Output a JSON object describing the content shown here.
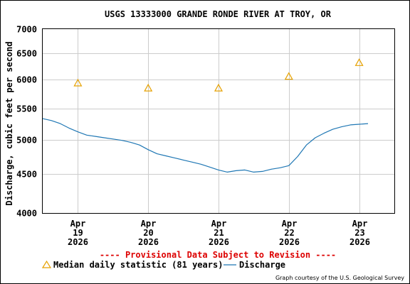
{
  "chart_data": {
    "type": "line",
    "title": "USGS 13333000 GRANDE RONDE RIVER AT TROY, OR",
    "ylabel": "Discharge, cubic feet per second",
    "xlabel": "",
    "y_scale": "log",
    "ylim": [
      4000,
      7000
    ],
    "y_ticks": [
      {
        "value": 4000,
        "label": "4000"
      },
      {
        "value": 4500,
        "label": "4500"
      },
      {
        "value": 5000,
        "label": "5000"
      },
      {
        "value": 5500,
        "label": "5500"
      },
      {
        "value": 6000,
        "label": "6000"
      },
      {
        "value": 6500,
        "label": "6500"
      },
      {
        "value": 7000,
        "label": "7000"
      }
    ],
    "xlim": [
      "2026-04-18 12:00",
      "2026-04-23 12:00"
    ],
    "x_ticks": [
      {
        "value": "2026-04-19",
        "lines": [
          "Apr",
          "19",
          "2026"
        ]
      },
      {
        "value": "2026-04-20",
        "lines": [
          "Apr",
          "20",
          "2026"
        ]
      },
      {
        "value": "2026-04-21",
        "lines": [
          "Apr",
          "21",
          "2026"
        ]
      },
      {
        "value": "2026-04-22",
        "lines": [
          "Apr",
          "22",
          "2026"
        ]
      },
      {
        "value": "2026-04-23",
        "lines": [
          "Apr",
          "23",
          "2026"
        ]
      }
    ],
    "grid": true,
    "series": [
      {
        "name": "Discharge",
        "type": "line",
        "color": "#1f77b4",
        "points": [
          [
            "2026-04-18 12:00",
            5330
          ],
          [
            "2026-04-18 15:00",
            5300
          ],
          [
            "2026-04-18 18:00",
            5250
          ],
          [
            "2026-04-18 21:00",
            5180
          ],
          [
            "2026-04-19 00:00",
            5120
          ],
          [
            "2026-04-19 03:00",
            5070
          ],
          [
            "2026-04-19 06:00",
            5050
          ],
          [
            "2026-04-19 09:00",
            5030
          ],
          [
            "2026-04-19 12:00",
            5010
          ],
          [
            "2026-04-19 15:00",
            4990
          ],
          [
            "2026-04-19 18:00",
            4960
          ],
          [
            "2026-04-19 21:00",
            4920
          ],
          [
            "2026-04-20 00:00",
            4850
          ],
          [
            "2026-04-20 03:00",
            4790
          ],
          [
            "2026-04-20 06:00",
            4760
          ],
          [
            "2026-04-20 09:00",
            4730
          ],
          [
            "2026-04-20 12:00",
            4700
          ],
          [
            "2026-04-20 15:00",
            4670
          ],
          [
            "2026-04-20 18:00",
            4640
          ],
          [
            "2026-04-20 21:00",
            4600
          ],
          [
            "2026-04-21 00:00",
            4560
          ],
          [
            "2026-04-21 03:00",
            4530
          ],
          [
            "2026-04-21 06:00",
            4550
          ],
          [
            "2026-04-21 09:00",
            4560
          ],
          [
            "2026-04-21 12:00",
            4530
          ],
          [
            "2026-04-21 15:00",
            4540
          ],
          [
            "2026-04-21 18:00",
            4570
          ],
          [
            "2026-04-21 21:00",
            4590
          ],
          [
            "2026-04-22 00:00",
            4620
          ],
          [
            "2026-04-22 03:00",
            4750
          ],
          [
            "2026-04-22 06:00",
            4920
          ],
          [
            "2026-04-22 09:00",
            5030
          ],
          [
            "2026-04-22 12:00",
            5100
          ],
          [
            "2026-04-22 15:00",
            5160
          ],
          [
            "2026-04-22 18:00",
            5200
          ],
          [
            "2026-04-22 21:00",
            5230
          ],
          [
            "2026-04-23 00:00",
            5240
          ],
          [
            "2026-04-23 03:00",
            5250
          ]
        ]
      },
      {
        "name": "Median daily statistic (81 years)",
        "type": "scatter",
        "marker": "triangle",
        "color": "#e6a100",
        "points": [
          [
            "2026-04-19",
            5940
          ],
          [
            "2026-04-20",
            5850
          ],
          [
            "2026-04-21",
            5850
          ],
          [
            "2026-04-22",
            6060
          ],
          [
            "2026-04-23",
            6320
          ]
        ]
      }
    ]
  },
  "provisional_note": "---- Provisional Data Subject to Revision ----",
  "legend": {
    "median_label": "Median daily statistic (81 years)",
    "discharge_label": "Discharge"
  },
  "credit": "Graph courtesy of the U.S. Geological Survey"
}
